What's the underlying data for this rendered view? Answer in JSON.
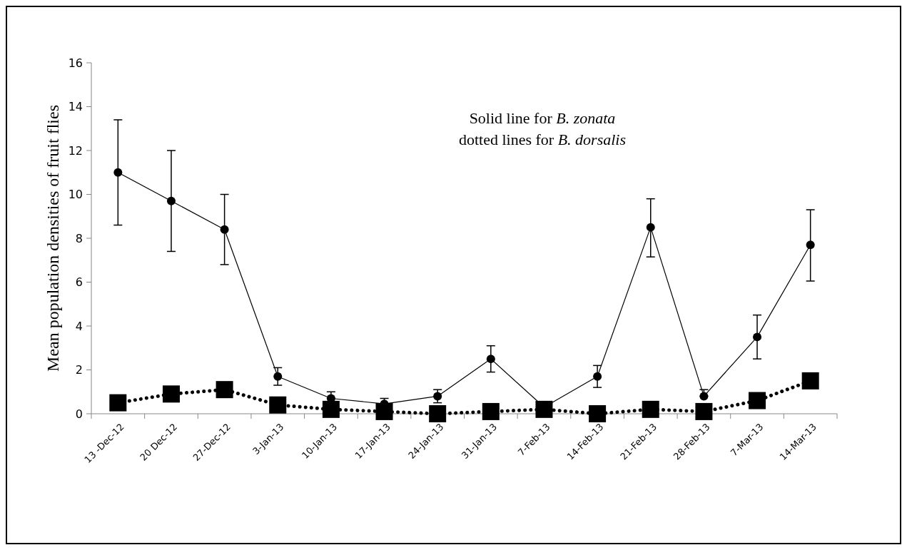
{
  "chart_data": {
    "type": "line",
    "ylabel": "Mean population densities of  fruit flies",
    "annotations": [
      "Solid line for B. zonata",
      "dotted lines for B. dorsalis"
    ],
    "categories": [
      "13 -Dec-12",
      "20 Dec-12",
      "27-Dec-12",
      "3-Jan-13",
      "10-Jan-13",
      "17-Jan-13",
      "24-Jan-13",
      "31-Jan-13",
      "7-Feb-13",
      "14-Feb-13",
      "21-Feb-13",
      "28-Feb-13",
      "7-Mar-13",
      "14-Mar-13"
    ],
    "ylim": [
      0,
      16
    ],
    "yticks": [
      0,
      2,
      4,
      6,
      8,
      10,
      12,
      14,
      16
    ],
    "grid": false,
    "series": [
      {
        "color": "#000000",
        "marker": "circle",
        "line_style": "solid",
        "values": [
          11.0,
          9.7,
          8.4,
          1.7,
          0.7,
          0.45,
          0.8,
          2.5,
          0.3,
          1.7,
          8.5,
          0.8,
          3.5,
          7.7
        ],
        "errors": [
          [
            8.6,
            13.4
          ],
          [
            7.4,
            12.0
          ],
          [
            6.8,
            10.0
          ],
          [
            1.3,
            2.1
          ],
          [
            0.7,
            1.0
          ],
          [
            0.45,
            0.7
          ],
          [
            0.5,
            1.1
          ],
          [
            1.9,
            3.1
          ],
          null,
          [
            1.2,
            2.2
          ],
          [
            7.15,
            9.8
          ],
          [
            0.8,
            1.1
          ],
          [
            2.5,
            4.5
          ],
          [
            6.05,
            9.3
          ]
        ]
      },
      {
        "color": "#000000",
        "marker": "square",
        "line_style": "dotted",
        "values": [
          0.5,
          0.9,
          1.1,
          0.4,
          0.2,
          0.1,
          0.0,
          0.1,
          0.2,
          0.0,
          0.2,
          0.1,
          0.6,
          1.5
        ]
      }
    ]
  }
}
